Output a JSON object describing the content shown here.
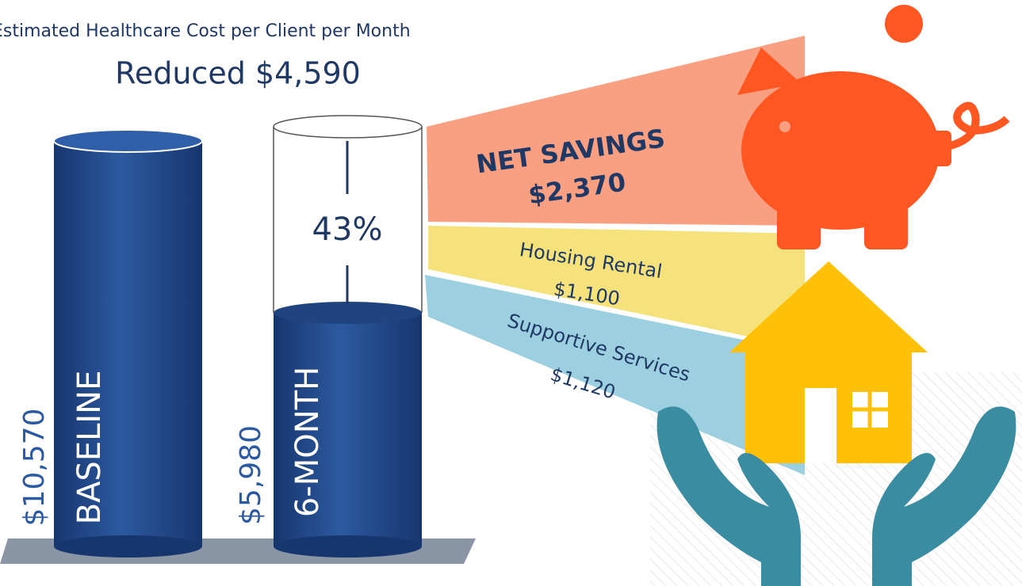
{
  "header": {
    "subtitle": "Estimated Healthcare Cost per Client per Month",
    "title": "Reduced $4,590"
  },
  "columns": [
    {
      "label": "BASELINE",
      "value": "$10,570"
    },
    {
      "label": "6-MONTH",
      "value": "$5,980"
    }
  ],
  "reduction": "43%",
  "breakdown": [
    {
      "label": "NET SAVINGS",
      "value": "$2,370"
    },
    {
      "label": "Housing Rental",
      "value": "$1,100"
    },
    {
      "label": "Supportive Services",
      "value": "$1,120"
    }
  ]
}
